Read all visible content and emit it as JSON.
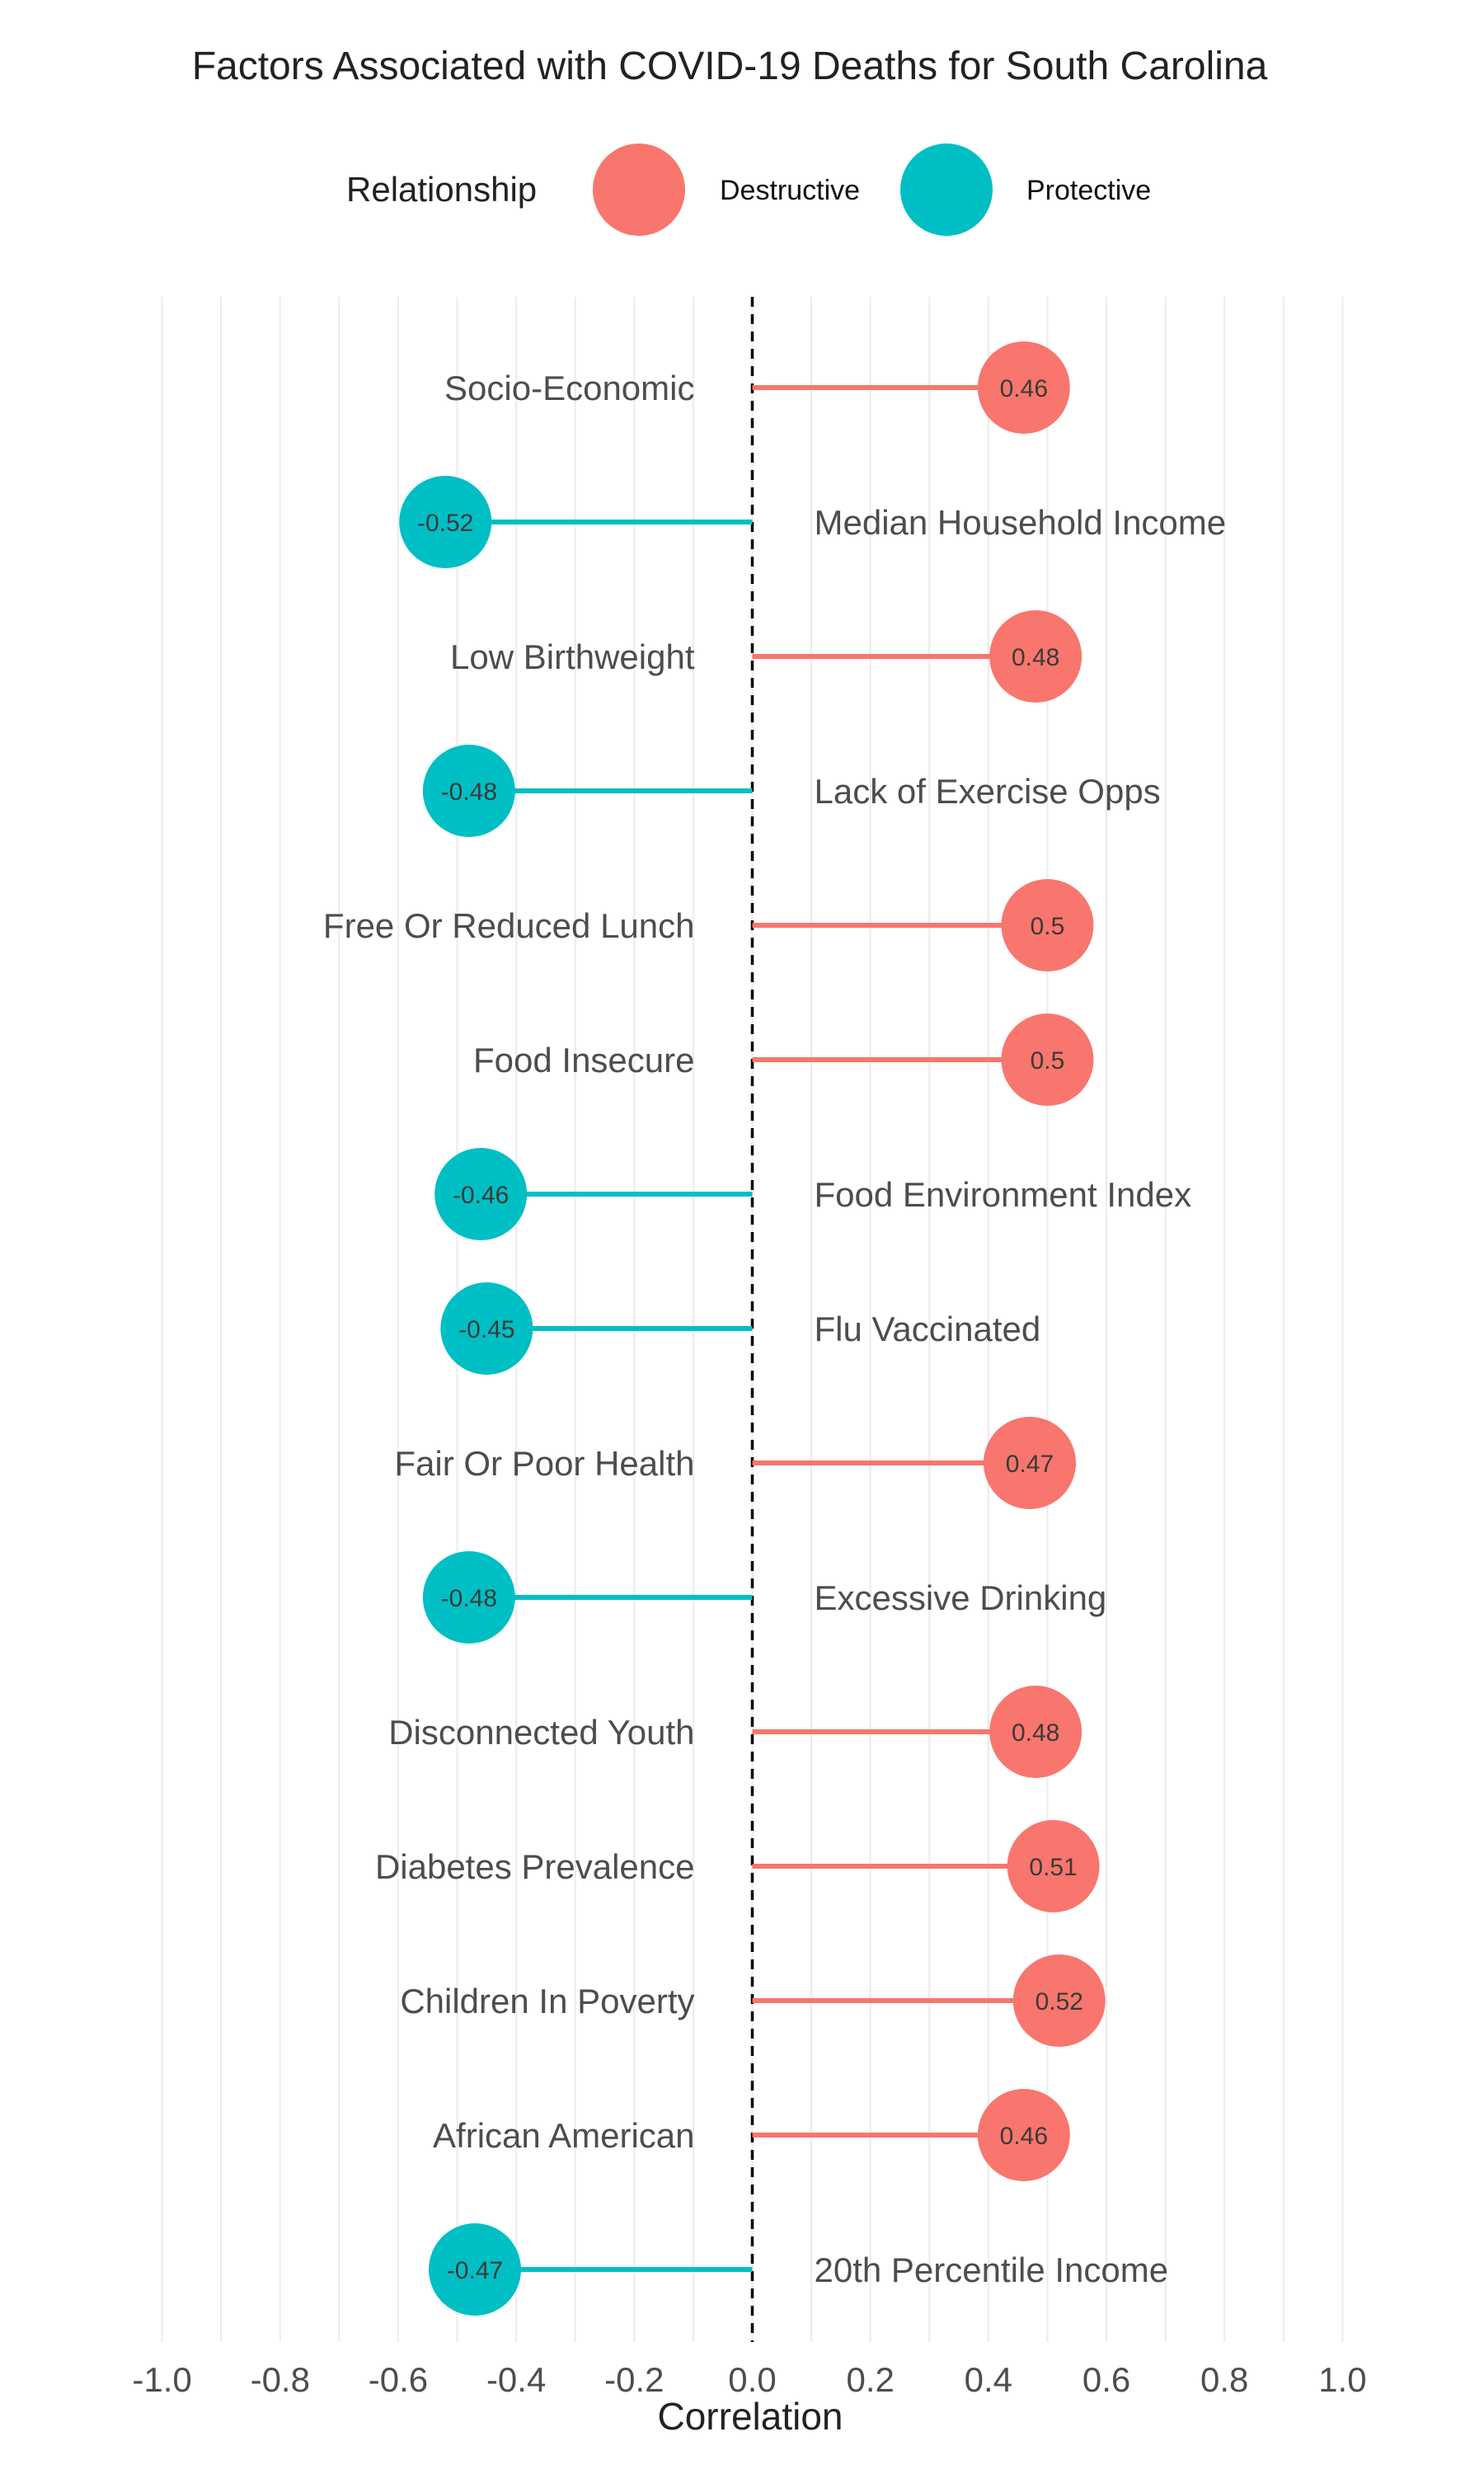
{
  "chart_data": {
    "type": "lollipop",
    "title": "Factors Associated with COVID-19 Deaths for South Carolina",
    "xlabel": "Correlation",
    "ylabel": "",
    "xlim": [
      -1.1,
      1.1
    ],
    "x_ticks": [
      -1.0,
      -0.8,
      -0.6,
      -0.4,
      -0.2,
      0.0,
      0.2,
      0.4,
      0.6,
      0.8,
      1.0
    ],
    "x_tick_labels": [
      "-1.0",
      "-0.8",
      "-0.6",
      "-0.4",
      "-0.2",
      "0.0",
      "0.2",
      "0.4",
      "0.6",
      "0.8",
      "1.0"
    ],
    "reference_line": {
      "x": 0,
      "style": "dashed"
    },
    "grid": "vertical",
    "legend": {
      "title": "Relationship",
      "position": "top",
      "entries": [
        {
          "name": "Destructive",
          "color": "#F8766D"
        },
        {
          "name": "Protective",
          "color": "#00BFC4"
        }
      ]
    },
    "categories": [
      "Socio-Economic",
      "Median Household Income",
      "Low Birthweight",
      "Lack of Exercise Opps",
      "Free Or Reduced Lunch",
      "Food Insecure",
      "Food Environment Index",
      "Flu Vaccinated",
      "Fair Or Poor Health",
      "Excessive Drinking",
      "Disconnected Youth",
      "Diabetes Prevalence",
      "Children In Poverty",
      "African American",
      "20th Percentile Income"
    ],
    "values": [
      0.46,
      -0.52,
      0.48,
      -0.48,
      0.5,
      0.5,
      -0.46,
      -0.45,
      0.47,
      -0.48,
      0.48,
      0.51,
      0.52,
      0.46,
      -0.47
    ],
    "value_labels": [
      "0.46",
      "-0.52",
      "0.48",
      "-0.48",
      "0.5",
      "0.5",
      "-0.46",
      "-0.45",
      "0.47",
      "-0.48",
      "0.48",
      "0.51",
      "0.52",
      "0.46",
      "-0.47"
    ],
    "relationship": [
      "Destructive",
      "Protective",
      "Destructive",
      "Protective",
      "Destructive",
      "Destructive",
      "Protective",
      "Protective",
      "Destructive",
      "Protective",
      "Destructive",
      "Destructive",
      "Destructive",
      "Destructive",
      "Protective"
    ]
  }
}
